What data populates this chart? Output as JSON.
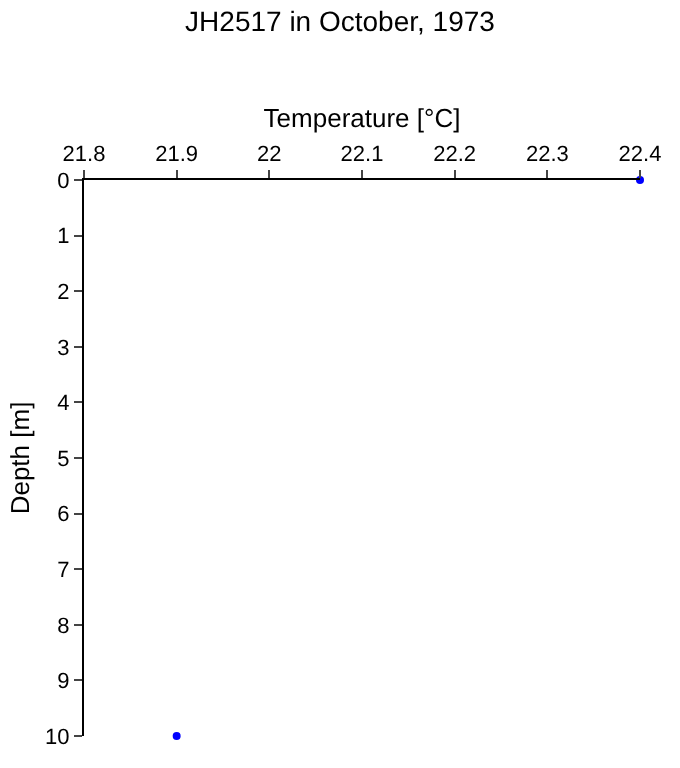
{
  "chart_data": {
    "type": "scatter",
    "title": "JH2517 in October, 1973",
    "xlabel": "Temperature [°C]",
    "ylabel": "Depth [m]",
    "x": [
      22.4,
      21.9
    ],
    "series": [
      {
        "color": "#0000ff",
        "values": [
          0,
          10
        ]
      }
    ],
    "xlim": [
      21.8,
      22.4
    ],
    "xticks": [
      21.8,
      21.9,
      22,
      22.1,
      22.2,
      22.3,
      22.4
    ],
    "ylim": [
      10,
      0
    ],
    "yticks": [
      0,
      1,
      2,
      3,
      4,
      5,
      6,
      7,
      8,
      9,
      10
    ],
    "marker": "circle"
  }
}
